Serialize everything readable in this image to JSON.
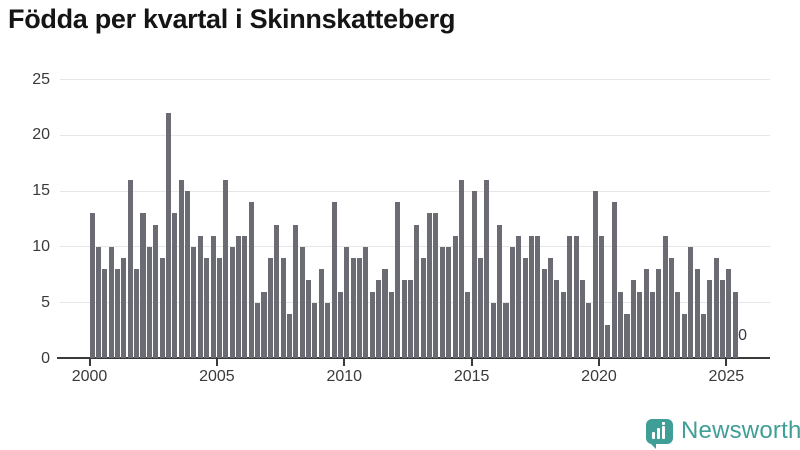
{
  "title": "Födda per kvartal i Skinnskatteberg",
  "chart_data": {
    "type": "bar",
    "title": "Födda per kvartal i Skinnskatteberg",
    "x_first_quarter": "2000 Q1",
    "x_last_quarter": "2025 Q3",
    "x_tick_labels": [
      "2000",
      "2005",
      "2010",
      "2015",
      "2020",
      "2025"
    ],
    "y_ticks": [
      0,
      5,
      10,
      15,
      20,
      25
    ],
    "ylim": [
      0,
      25
    ],
    "grid": "horizontal",
    "legend": "none",
    "bar_color": "#6b6b73",
    "last_point_label": "0",
    "values": [
      13,
      10,
      8,
      10,
      8,
      9,
      16,
      8,
      13,
      10,
      12,
      9,
      22,
      13,
      16,
      15,
      10,
      11,
      9,
      11,
      9,
      16,
      10,
      11,
      11,
      14,
      5,
      6,
      9,
      12,
      9,
      4,
      12,
      10,
      7,
      5,
      8,
      5,
      14,
      6,
      10,
      9,
      9,
      10,
      6,
      7,
      8,
      6,
      14,
      7,
      7,
      12,
      9,
      13,
      13,
      10,
      10,
      11,
      16,
      6,
      15,
      9,
      16,
      5,
      12,
      5,
      10,
      11,
      9,
      11,
      11,
      8,
      9,
      7,
      6,
      11,
      11,
      7,
      5,
      15,
      11,
      3,
      14,
      6,
      4,
      7,
      6,
      8,
      6,
      8,
      11,
      9,
      6,
      4,
      10,
      8,
      4,
      7,
      9,
      7,
      8,
      6,
      0
    ]
  },
  "footer": {
    "brand": "Newsworthy",
    "brand_color": "#3f9e96"
  }
}
